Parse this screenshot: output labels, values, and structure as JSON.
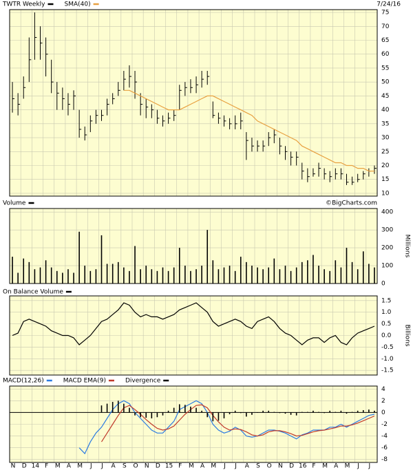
{
  "chart_data": [
    {
      "type": "ohlc",
      "date": "7/24/16",
      "ylim": [
        9,
        76
      ],
      "yticks": [
        10,
        15,
        20,
        25,
        30,
        35,
        40,
        45,
        50,
        55,
        60,
        65,
        70,
        75
      ],
      "series": [
        {
          "name": "TWTR Weekly",
          "color": "#000000",
          "high": [
            50,
            46,
            52,
            66,
            75,
            70,
            66,
            58,
            50,
            48,
            46,
            47,
            40,
            34,
            38,
            40,
            40,
            44,
            46,
            50,
            54,
            56,
            54,
            46,
            44,
            42,
            40,
            38,
            39,
            40,
            49,
            50,
            51,
            52,
            54,
            54,
            43,
            39,
            38,
            37,
            38,
            39,
            32,
            30,
            29,
            29,
            32,
            33,
            30,
            27,
            25,
            25,
            21,
            19,
            19,
            21,
            19,
            18,
            19,
            19,
            17,
            16,
            17,
            18,
            19,
            20
          ],
          "low": [
            39,
            38,
            44,
            50,
            58,
            58,
            52,
            46,
            40,
            40,
            38,
            40,
            30,
            29,
            32,
            35,
            36,
            38,
            42,
            45,
            47,
            48,
            44,
            38,
            37,
            37,
            35,
            34,
            35,
            36,
            40,
            45,
            46,
            46,
            48,
            49,
            37,
            35,
            34,
            33,
            33,
            33,
            22,
            25,
            25,
            25,
            27,
            28,
            24,
            22,
            20,
            20,
            15,
            14,
            16,
            16,
            15,
            14,
            15,
            15,
            13,
            13,
            14,
            15,
            16,
            17
          ],
          "close": [
            44,
            42,
            48,
            58,
            66,
            64,
            60,
            50,
            46,
            44,
            42,
            45,
            33,
            31,
            36,
            38,
            38,
            42,
            44,
            47,
            51,
            52,
            50,
            42,
            41,
            40,
            37,
            36,
            37,
            38,
            47,
            48,
            48,
            49,
            51,
            52,
            38,
            37,
            36,
            35,
            35,
            36,
            29,
            27,
            27,
            27,
            30,
            31,
            27,
            25,
            23,
            23,
            18,
            16,
            17,
            19,
            17,
            16,
            17,
            17,
            14,
            14,
            15,
            17,
            18,
            19
          ]
        },
        {
          "name": "SMA(40)",
          "color": "#e8a040",
          "values": [
            null,
            null,
            null,
            null,
            null,
            null,
            null,
            null,
            null,
            null,
            null,
            null,
            null,
            null,
            null,
            null,
            null,
            null,
            null,
            null,
            47,
            47,
            46,
            45,
            44,
            43,
            42,
            41,
            40,
            40,
            40,
            41,
            42,
            43,
            44,
            45,
            45,
            44,
            43,
            42,
            41,
            40,
            39,
            38,
            36,
            35,
            34,
            33,
            32,
            31,
            30,
            29,
            27,
            26,
            25,
            24,
            23,
            22,
            21,
            21,
            20,
            20,
            19,
            19,
            18,
            18
          ]
        }
      ]
    },
    {
      "type": "bar",
      "source": "©BigCharts.com",
      "y_label": "Millions",
      "ylim": [
        0,
        420
      ],
      "yticks": [
        0,
        100,
        200,
        300,
        400
      ],
      "series": [
        {
          "name": "Volume",
          "color": "#000000",
          "values": [
            150,
            60,
            140,
            120,
            80,
            90,
            130,
            90,
            70,
            60,
            80,
            60,
            290,
            100,
            70,
            80,
            270,
            110,
            110,
            120,
            90,
            70,
            210,
            80,
            100,
            80,
            70,
            90,
            70,
            90,
            200,
            100,
            70,
            80,
            100,
            300,
            130,
            80,
            90,
            100,
            70,
            150,
            120,
            100,
            90,
            80,
            90,
            140,
            80,
            100,
            70,
            90,
            120,
            130,
            160,
            100,
            80,
            70,
            130,
            90,
            200,
            120,
            80,
            180,
            110,
            90
          ]
        }
      ]
    },
    {
      "type": "line",
      "y_label": "Billions",
      "ylim": [
        -1.7,
        1.7
      ],
      "yticks": [
        {
          "value": 1.5,
          "label": "1.5"
        },
        {
          "value": 1,
          "label": "1.0"
        },
        {
          "value": 0.5,
          "label": "0.5"
        },
        {
          "value": 0,
          "label": "0.0"
        },
        {
          "value": -0.5,
          "label": "-0.5"
        },
        {
          "value": -1,
          "label": "-1.0"
        },
        {
          "value": -1.5,
          "label": "-1.5"
        }
      ],
      "series": [
        {
          "name": "On Balance Volume",
          "color": "#000000",
          "values": [
            0,
            0.1,
            0.6,
            0.7,
            0.6,
            0.5,
            0.4,
            0.2,
            0.1,
            0,
            0,
            -0.1,
            -0.4,
            -0.2,
            0,
            0.3,
            0.6,
            0.7,
            0.9,
            1.1,
            1.4,
            1.3,
            1,
            0.8,
            0.9,
            0.8,
            0.8,
            0.7,
            0.8,
            0.9,
            1.1,
            1.2,
            1.3,
            1.4,
            1.2,
            1,
            0.6,
            0.4,
            0.5,
            0.6,
            0.7,
            0.6,
            0.4,
            0.3,
            0.6,
            0.7,
            0.8,
            0.6,
            0.3,
            0.1,
            0,
            -0.2,
            -0.4,
            -0.2,
            -0.1,
            -0.1,
            -0.3,
            -0.1,
            0,
            -0.3,
            -0.4,
            -0.1,
            0.1,
            0.2,
            0.3,
            0.4
          ]
        }
      ]
    },
    {
      "type": "macd",
      "ylim": [
        -8.5,
        4.5
      ],
      "yticks": [
        4,
        2,
        0,
        -2,
        -4,
        -6,
        -8
      ],
      "categories": [
        "N",
        null,
        "D",
        null,
        "14",
        null,
        "F",
        null,
        "M",
        null,
        "A",
        null,
        "M",
        null,
        "J",
        null,
        "J",
        null,
        "A",
        null,
        "S",
        null,
        "O",
        null,
        "N",
        null,
        "D",
        null,
        "15",
        null,
        "F",
        null,
        "M",
        null,
        "A",
        null,
        "M",
        null,
        "J",
        null,
        "J",
        null,
        "A",
        null,
        "S",
        null,
        "O",
        null,
        "N",
        null,
        "D",
        null,
        "16",
        null,
        "F",
        null,
        "M",
        null,
        "A",
        null,
        "M",
        null,
        "J",
        null,
        "J",
        null
      ],
      "series": [
        {
          "name": "MACD(12,26)",
          "color": "#2a7ae2",
          "values": [
            null,
            null,
            null,
            null,
            null,
            null,
            null,
            null,
            null,
            null,
            null,
            null,
            -6,
            -7,
            -5,
            -3.5,
            -2.5,
            -1,
            0.5,
            1.5,
            2,
            1.5,
            0,
            -1,
            -2,
            -3,
            -3.5,
            -3.5,
            -2.5,
            -1.5,
            0.5,
            1,
            1.5,
            2,
            1.5,
            0,
            -2,
            -3,
            -3.5,
            -3.2,
            -2.5,
            -3,
            -4,
            -4.2,
            -4,
            -3.5,
            -3,
            -3,
            -3.2,
            -3.5,
            -4,
            -4.5,
            -3.8,
            -3.5,
            -3,
            -3,
            -3,
            -2.5,
            -2.5,
            -2,
            -2.5,
            -2,
            -1.5,
            -1,
            -0.5,
            -0.3
          ]
        },
        {
          "name": "MACD EMA(9)",
          "color": "#c0392b",
          "values": [
            null,
            null,
            null,
            null,
            null,
            null,
            null,
            null,
            null,
            null,
            null,
            null,
            null,
            null,
            null,
            null,
            -5,
            -3.5,
            -2,
            -0.5,
            0.8,
            1.2,
            0.5,
            -0.3,
            -1.2,
            -2,
            -2.7,
            -3,
            -2.8,
            -2.3,
            -1.3,
            -0.3,
            0.5,
            1.2,
            1.3,
            0.8,
            -0.5,
            -1.6,
            -2.5,
            -3,
            -2.8,
            -2.9,
            -3.3,
            -3.8,
            -4,
            -3.8,
            -3.3,
            -3.1,
            -3.1,
            -3.3,
            -3.6,
            -4,
            -3.9,
            -3.6,
            -3.3,
            -3.1,
            -3,
            -2.8,
            -2.6,
            -2.3,
            -2.3,
            -2.1,
            -1.8,
            -1.4,
            -1,
            -0.6
          ]
        },
        {
          "name": "Divergence",
          "color": "#000000",
          "kind": "bar",
          "values": [
            null,
            null,
            null,
            null,
            null,
            null,
            null,
            null,
            null,
            null,
            null,
            null,
            null,
            null,
            null,
            null,
            1.2,
            1.5,
            1.8,
            2,
            1.5,
            0.8,
            -0.5,
            -0.8,
            -0.9,
            -1,
            -0.8,
            -0.5,
            0.3,
            0.8,
            1.4,
            1.3,
            1,
            0.8,
            0.3,
            -0.8,
            -1.5,
            -1.4,
            -1,
            -0.3,
            0.3,
            -0.1,
            -0.7,
            -0.4,
            0,
            0.3,
            0.3,
            0.1,
            -0.1,
            -0.2,
            -0.4,
            -0.5,
            0.1,
            0.1,
            0.3,
            0.1,
            -0.1,
            0.3,
            0.1,
            0.3,
            -0.2,
            0.1,
            0.3,
            0.4,
            0.5,
            0.3
          ]
        }
      ]
    }
  ]
}
